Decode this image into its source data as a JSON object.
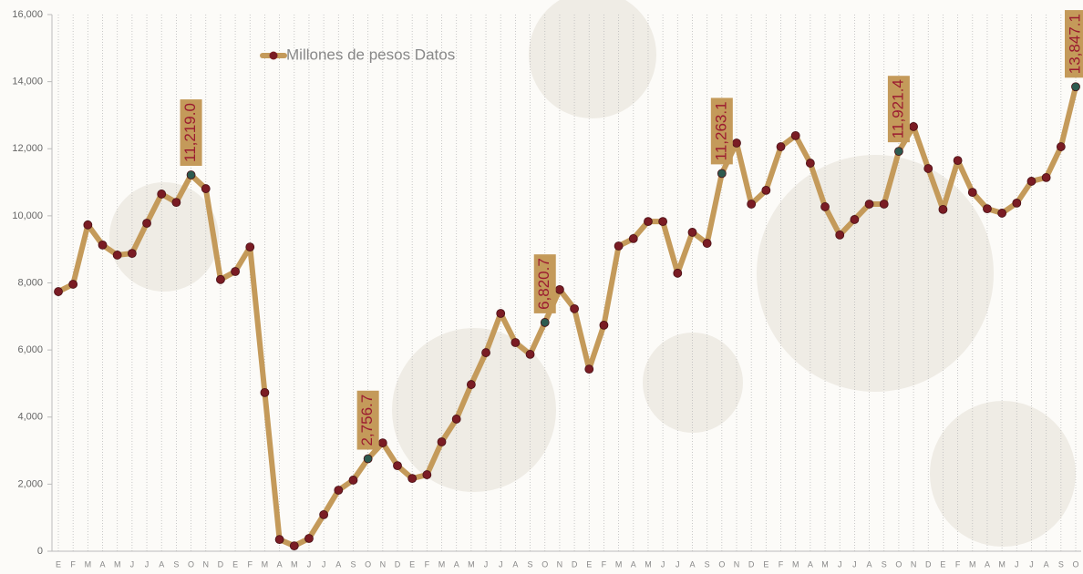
{
  "chart_data": {
    "type": "line",
    "categories": [
      "E",
      "F",
      "M",
      "A",
      "M",
      "J",
      "J",
      "A",
      "S",
      "O",
      "N",
      "D",
      "E",
      "F",
      "M",
      "A",
      "M",
      "J",
      "J",
      "A",
      "S",
      "O",
      "N",
      "D",
      "E",
      "F",
      "M",
      "A",
      "M",
      "J",
      "J",
      "A",
      "S",
      "O",
      "N",
      "D",
      "E",
      "F",
      "M",
      "A",
      "M",
      "J",
      "J",
      "A",
      "S",
      "O",
      "N",
      "D",
      "E",
      "F",
      "M",
      "A",
      "M",
      "J",
      "J",
      "A",
      "S",
      "O",
      "N",
      "D",
      "E",
      "F",
      "M",
      "A",
      "M",
      "J",
      "J",
      "A",
      "S",
      "O"
    ],
    "series": [
      {
        "name": "Millones de pesos Datos",
        "color": "#c49a5a",
        "marker_color": "#7a1c24",
        "label_marker_color": "#2d5a4f",
        "values": [
          7740,
          7960,
          9730,
          9130,
          8830,
          8880,
          9780,
          10650,
          10400,
          11219.0,
          10810,
          8100,
          8340,
          9070,
          4730,
          350,
          160,
          380,
          1090,
          1820,
          2120,
          2756.7,
          3230,
          2550,
          2170,
          2280,
          3260,
          3940,
          4970,
          5920,
          7090,
          6220,
          5870,
          6820.7,
          7800,
          7230,
          5430,
          6740,
          9100,
          9320,
          9830,
          9830,
          8290,
          9510,
          9180,
          11263.1,
          12170,
          10350,
          10760,
          12060,
          12390,
          11570,
          10270,
          9430,
          9890,
          10350,
          10350,
          11921.4,
          12660,
          11410,
          10190,
          11650,
          10700,
          10210,
          10080,
          10380,
          11030,
          11140,
          12060,
          13847.1
        ],
        "value_labels": [
          null,
          null,
          null,
          null,
          null,
          null,
          null,
          null,
          null,
          "11,219.0",
          null,
          null,
          null,
          null,
          null,
          null,
          null,
          null,
          null,
          null,
          null,
          "2,756.7",
          null,
          null,
          null,
          null,
          null,
          null,
          null,
          null,
          null,
          null,
          null,
          "6,820.7",
          null,
          null,
          null,
          null,
          null,
          null,
          null,
          null,
          null,
          null,
          null,
          "11,263.1",
          null,
          null,
          null,
          null,
          null,
          null,
          null,
          null,
          null,
          null,
          null,
          "11,921.4",
          null,
          null,
          null,
          null,
          null,
          null,
          null,
          null,
          null,
          null,
          null,
          "13,847.1"
        ]
      }
    ],
    "ylim": [
      0,
      16000
    ],
    "yticks": [
      0,
      {
        "value": 2000,
        "label": "2,000"
      },
      {
        "value": 4000,
        "label": "4,000"
      },
      {
        "value": 6000,
        "label": "6,000"
      },
      {
        "value": 8000,
        "label": "8,000"
      },
      {
        "value": 10000,
        "label": "10,000"
      },
      {
        "value": 12000,
        "label": "12,000"
      },
      {
        "value": 14000,
        "label": "14,000"
      },
      {
        "value": 16000,
        "label": "16,000"
      }
    ],
    "grid": true,
    "legend": "top-left"
  }
}
